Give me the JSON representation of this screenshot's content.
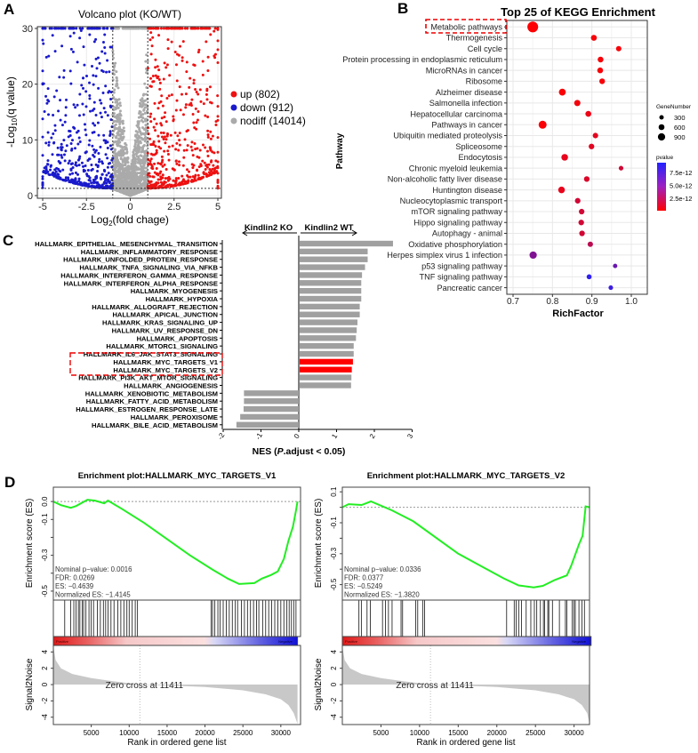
{
  "panels": {
    "a": "A",
    "b": "B",
    "c": "C",
    "d": "D"
  },
  "chart_data": [
    {
      "type": "scatter",
      "title": "Volcano plot (KO/WT)",
      "xlabel": "Log2(fold chage)",
      "xlabel_main": "Log",
      "xlabel_sub": "2",
      "xlabel_rest": "(fold chage)",
      "ylabel": "-Log10(q value)",
      "ylabel_main": "-Log",
      "ylabel_sub": "10",
      "ylabel_rest": "(q value)",
      "xlim": [
        -5.2,
        5.2
      ],
      "ylim": [
        0,
        30
      ],
      "xticks": [
        "-5",
        "-2.5",
        "0",
        "2.5",
        "5"
      ],
      "xtick_values": [
        -5,
        -2.5,
        0,
        2.5,
        5
      ],
      "yticks": [
        "0",
        "10",
        "20",
        "30"
      ],
      "ytick_values": [
        0,
        10,
        20,
        30
      ],
      "fc_threshold": 1,
      "q_threshold_log": 1.3,
      "legend": [
        {
          "label": "up (802)",
          "count": 802,
          "color": "#ee1111"
        },
        {
          "label": "down (912)",
          "count": 912,
          "color": "#1a1acc"
        },
        {
          "label": "nodiff (14014)",
          "count": 14014,
          "color": "#aaaaaa"
        }
      ]
    },
    {
      "type": "scatter",
      "title": "Top 25 of KEGG Enrichment",
      "xlabel": "RichFactor",
      "ylabel": "Pathway",
      "xlim": [
        0.685,
        1.03
      ],
      "xticks": [
        "0.7",
        "0.8",
        "0.9",
        "1.0"
      ],
      "xtick_values": [
        0.7,
        0.8,
        0.9,
        1.0
      ],
      "highlight": "Metabolic pathways",
      "size_legend": {
        "title": "GeneNumber",
        "labels": [
          "300",
          "600",
          "900"
        ],
        "values": [
          300,
          600,
          900
        ]
      },
      "color_legend": {
        "title": "pvalue",
        "labels": [
          "7.5e-12",
          "5.0e-12",
          "2.5e-12"
        ],
        "values": [
          7.5e-12,
          5e-12,
          2.5e-12
        ],
        "low_color": "#ff0000",
        "high_color": "#2222ff",
        "range": [
          0,
          9.6e-12
        ]
      },
      "points": [
        {
          "pathway": "Metabolic pathways",
          "rich": 0.75,
          "genes": 1000,
          "p": 1e-13
        },
        {
          "pathway": "Thermogenesis",
          "rich": 0.905,
          "genes": 180,
          "p": 3e-13
        },
        {
          "pathway": "Cell cycle",
          "rich": 0.968,
          "genes": 130,
          "p": 3e-13
        },
        {
          "pathway": "Protein processing in endoplasmic reticulum",
          "rich": 0.922,
          "genes": 170,
          "p": 3e-13
        },
        {
          "pathway": "MicroRNAs in cancer",
          "rich": 0.921,
          "genes": 170,
          "p": 3e-13
        },
        {
          "pathway": "Ribosome",
          "rich": 0.926,
          "genes": 160,
          "p": 3e-13
        },
        {
          "pathway": "Alzheimer disease",
          "rich": 0.825,
          "genes": 290,
          "p": 2e-13
        },
        {
          "pathway": "Salmonella infection",
          "rich": 0.863,
          "genes": 220,
          "p": 5e-13
        },
        {
          "pathway": "Hepatocellular carcinoma",
          "rich": 0.891,
          "genes": 180,
          "p": 8e-13
        },
        {
          "pathway": "Pathways in cancer",
          "rich": 0.775,
          "genes": 450,
          "p": 2e-13
        },
        {
          "pathway": "Ubiquitin mediated proteolysis",
          "rich": 0.909,
          "genes": 140,
          "p": 1.2e-12
        },
        {
          "pathway": "Spliceosome",
          "rich": 0.899,
          "genes": 150,
          "p": 1.2e-12
        },
        {
          "pathway": "Endocytosis",
          "rich": 0.831,
          "genes": 260,
          "p": 1e-12
        },
        {
          "pathway": "Chronic myeloid leukemia",
          "rich": 0.974,
          "genes": 75,
          "p": 2e-12
        },
        {
          "pathway": "Non-alcoholic fatty liver disease",
          "rich": 0.887,
          "genes": 150,
          "p": 1.5e-12
        },
        {
          "pathway": "Huntington disease",
          "rich": 0.823,
          "genes": 270,
          "p": 1e-12
        },
        {
          "pathway": "Nucleocytoplasmic transport",
          "rich": 0.864,
          "genes": 150,
          "p": 2e-12
        },
        {
          "pathway": "mTOR signaling pathway",
          "rich": 0.874,
          "genes": 150,
          "p": 2e-12
        },
        {
          "pathway": "Hippo signaling pathway",
          "rich": 0.873,
          "genes": 150,
          "p": 2e-12
        },
        {
          "pathway": "Autophagy - animal",
          "rich": 0.875,
          "genes": 150,
          "p": 2e-12
        },
        {
          "pathway": "Oxidative phosphorylation",
          "rich": 0.896,
          "genes": 130,
          "p": 3e-12
        },
        {
          "pathway": "Herpes simplex virus 1 infection",
          "rich": 0.751,
          "genes": 350,
          "p": 5.5e-12
        },
        {
          "pathway": "p53 signaling pathway",
          "rich": 0.959,
          "genes": 60,
          "p": 6.5e-12
        },
        {
          "pathway": "TNF signaling pathway",
          "rich": 0.893,
          "genes": 100,
          "p": 9e-12
        },
        {
          "pathway": "Pancreatic cancer",
          "rich": 0.948,
          "genes": 70,
          "p": 8.5e-12
        }
      ]
    },
    {
      "type": "bar",
      "orientation": "horizontal",
      "xlabel": "NES (P.adjust < 0.05)",
      "xlabel_pre": "NES (",
      "xlabel_italic": "P",
      "xlabel_post": ".adjust < 0.05)",
      "xlim": [
        -2,
        3
      ],
      "xticks": [
        "-2",
        "-1",
        "0",
        "1",
        "2",
        "3"
      ],
      "xtick_values": [
        -2,
        -1,
        0,
        1,
        2,
        3
      ],
      "left_header": "Kindlin2 KO",
      "right_header": "Kindlin2 WT",
      "highlight_color": "#ff0000",
      "bar_color": "#a0a0a0",
      "categories": [
        "HALLMARK_EPITHELIAL_MESENCHYMAL_TRANSITION",
        "HALLMARK_INFLAMMATORY_RESPONSE",
        "HALLMARK_UNFOLDED_PROTEIN_RESPONSE",
        "HALLMARK_TNFA_SIGNALING_VIA_NFKB",
        "HALLMARK_INTERFERON_GAMMA_RESPONSE",
        "HALLMARK_INTERFERON_ALPHA_RESPONSE",
        "HALLMARK_MYOGENESIS",
        "HALLMARK_HYPOXIA",
        "HALLMARK_ALLOGRAFT_REJECTION",
        "HALLMARK_APICAL_JUNCTION",
        "HALLMARK_KRAS_SIGNALING_UP",
        "HALLMARK_UV_RESPONSE_DN",
        "HALLMARK_APOPTOSIS",
        "HALLMARK_MTORC1_SIGNALING",
        "HALLMARK_IL6_JAK_STAT3_SIGNALING",
        "HALLMARK_MYC_TARGETS_V1",
        "HALLMARK_MYC_TARGETS_V2",
        "HALLMARK_PI3K_AKT_MTOR_SIGNALING",
        "HALLMARK_ANGIOGENESIS",
        "HALLMARK_XENOBIOTIC_METABOLISM",
        "HALLMARK_FATTY_ACID_METABOLISM",
        "HALLMARK_ESTROGEN_RESPONSE_LATE",
        "HALLMARK_PEROXISOME",
        "HALLMARK_BILE_ACID_METABOLISM"
      ],
      "values": [
        2.47,
        1.8,
        1.8,
        1.73,
        1.65,
        1.63,
        1.63,
        1.63,
        1.59,
        1.59,
        1.53,
        1.51,
        1.49,
        1.43,
        1.43,
        1.41,
        1.38,
        1.37,
        1.36,
        -1.45,
        -1.45,
        -1.46,
        -1.55,
        -1.65
      ],
      "highlighted": [
        "HALLMARK_MYC_TARGETS_V1",
        "HALLMARK_MYC_TARGETS_V2"
      ]
    },
    {
      "type": "line",
      "title": "Enrichment plot:HALLMARK_MYC_TARGETS_V1",
      "xlabel": "Rank in ordered gene list",
      "ylabel": "Enrichment score (ES)",
      "ylabel2": "Signal2Noise",
      "xlim": [
        0,
        32600
      ],
      "ylim": [
        -0.55,
        0.08
      ],
      "ylim2": [
        -4.9,
        4.8
      ],
      "xticks": [
        "5000",
        "10000",
        "15000",
        "20000",
        "25000",
        "30000"
      ],
      "xtick_values": [
        5000,
        10000,
        15000,
        20000,
        25000,
        30000
      ],
      "yticks": [
        "0.0",
        "-0.1",
        "-0.3",
        "-0.5"
      ],
      "ytick_values": [
        0,
        -0.1,
        -0.3,
        -0.5
      ],
      "yminor": [
        -0.2,
        -0.4
      ],
      "yticks2": [
        "4",
        "2",
        "0",
        "-2",
        "-4"
      ],
      "ytick2_values": [
        4,
        2,
        0,
        -2,
        -4
      ],
      "stats": [
        "Nominal p−value: 0.0016",
        "FDR: 0.0269",
        "ES: −0.4639",
        "Normalized ES: −1.4145"
      ],
      "zero_cross_label": "Zero cross at 11411",
      "zero_cross": 11411,
      "pos_label": "Positive",
      "neg_label": "Negative",
      "es_curve": [
        [
          0,
          0
        ],
        [
          1000,
          -0.02
        ],
        [
          2300,
          -0.035
        ],
        [
          3000,
          -0.025
        ],
        [
          4500,
          0.01
        ],
        [
          5500,
          0.005
        ],
        [
          6700,
          -0.01
        ],
        [
          7200,
          0.005
        ],
        [
          9000,
          -0.04
        ],
        [
          12000,
          -0.12
        ],
        [
          15000,
          -0.21
        ],
        [
          18000,
          -0.3
        ],
        [
          21000,
          -0.38
        ],
        [
          23000,
          -0.43
        ],
        [
          24500,
          -0.46
        ],
        [
          26500,
          -0.455
        ],
        [
          27500,
          -0.43
        ],
        [
          28700,
          -0.41
        ],
        [
          29600,
          -0.39
        ],
        [
          30400,
          -0.32
        ],
        [
          31000,
          -0.22
        ],
        [
          31600,
          -0.14
        ],
        [
          32000,
          -0.05
        ],
        [
          32200,
          0
        ]
      ],
      "hits": [
        1500,
        2300,
        2700,
        3000,
        3300,
        3500,
        3800,
        4000,
        4300,
        4700,
        5000,
        5300,
        5800,
        6200,
        6600,
        6900,
        7200,
        7600,
        8000,
        8500,
        8900,
        9300,
        9700,
        10000,
        10400,
        10800,
        11100,
        20800,
        21000,
        21300,
        21700,
        22000,
        22400,
        22800,
        23200,
        23600,
        24000,
        24300,
        24800,
        25200,
        25600,
        26000,
        26400,
        26800,
        27100,
        27600,
        28000,
        28400,
        28800,
        29200,
        29600,
        30000,
        30400,
        30800,
        31100,
        31400,
        31700,
        32000
      ],
      "signal_curve": [
        [
          0,
          4.7
        ],
        [
          300,
          3
        ],
        [
          1000,
          2
        ],
        [
          2500,
          1.3
        ],
        [
          5000,
          0.8
        ],
        [
          8000,
          0.4
        ],
        [
          11411,
          0
        ],
        [
          15000,
          -0.1
        ],
        [
          20000,
          -0.3
        ],
        [
          25000,
          -0.7
        ],
        [
          28000,
          -1.2
        ],
        [
          30000,
          -1.8
        ],
        [
          31000,
          -2.5
        ],
        [
          31700,
          -3.5
        ],
        [
          32200,
          -4.8
        ]
      ]
    },
    {
      "type": "line",
      "title": "Enrichment plot:HALLMARK_MYC_TARGETS_V2",
      "xlabel": "Rank in ordered gene list",
      "ylabel": "Enrichment score (ES)",
      "ylabel2": "Signal2Noise",
      "xlim": [
        0,
        32000
      ],
      "ylim": [
        -0.6,
        0.13
      ],
      "ylim2": [
        -4.9,
        4.8
      ],
      "xticks": [
        "5000",
        "10000",
        "15000",
        "20000",
        "25000",
        "30000"
      ],
      "xtick_values": [
        5000,
        10000,
        15000,
        20000,
        25000,
        30000
      ],
      "yticks": [
        "0.1",
        "-0.1",
        "-0.3",
        "-0.5"
      ],
      "ytick_values": [
        0.1,
        -0.1,
        -0.3,
        -0.5
      ],
      "yminor": [
        0,
        -0.2,
        -0.4
      ],
      "yticks2": [
        "4",
        "2",
        "0",
        "-2",
        "-4"
      ],
      "ytick2_values": [
        4,
        2,
        0,
        -2,
        -4
      ],
      "stats": [
        "Nominal p−value: 0.0336",
        "FDR: 0.0377",
        "ES: −0.5249",
        "Normalized ES: −1.3820"
      ],
      "zero_cross_label": "Zero cross at 11411",
      "zero_cross": 11411,
      "pos_label": "Positive",
      "neg_label": "Negative",
      "es_curve": [
        [
          0,
          0
        ],
        [
          800,
          0.02
        ],
        [
          2500,
          0.015
        ],
        [
          3700,
          0.038
        ],
        [
          6440,
          -0.02
        ],
        [
          9170,
          -0.09
        ],
        [
          15000,
          -0.3
        ],
        [
          20900,
          -0.46
        ],
        [
          22830,
          -0.505
        ],
        [
          24780,
          -0.518
        ],
        [
          25950,
          -0.508
        ],
        [
          27500,
          -0.47
        ],
        [
          29070,
          -0.44
        ],
        [
          29650,
          -0.375
        ],
        [
          30630,
          -0.24
        ],
        [
          31100,
          -0.185
        ],
        [
          31500,
          0.006
        ],
        [
          32000,
          0
        ]
      ],
      "hits": [
        2150,
        2460,
        3200,
        3630,
        5200,
        5580,
        5970,
        6440,
        7600,
        7800,
        9480,
        9760,
        10400,
        10650,
        21270,
        22250,
        22500,
        22830,
        23200,
        23800,
        24400,
        24860,
        25170,
        25640,
        26030,
        26200,
        26600,
        26730,
        27200,
        28100,
        28880,
        29070,
        29770,
        29970,
        30160,
        30630,
        31020,
        31340
      ],
      "signal_curve": [
        [
          0,
          4.7
        ],
        [
          300,
          3
        ],
        [
          1000,
          2
        ],
        [
          2500,
          1.3
        ],
        [
          5000,
          0.8
        ],
        [
          8000,
          0.4
        ],
        [
          11411,
          0
        ],
        [
          15000,
          -0.1
        ],
        [
          20000,
          -0.3
        ],
        [
          25000,
          -0.7
        ],
        [
          28000,
          -1.2
        ],
        [
          30000,
          -1.8
        ],
        [
          31000,
          -2.5
        ],
        [
          31700,
          -3.5
        ],
        [
          32000,
          -4.8
        ]
      ]
    }
  ]
}
